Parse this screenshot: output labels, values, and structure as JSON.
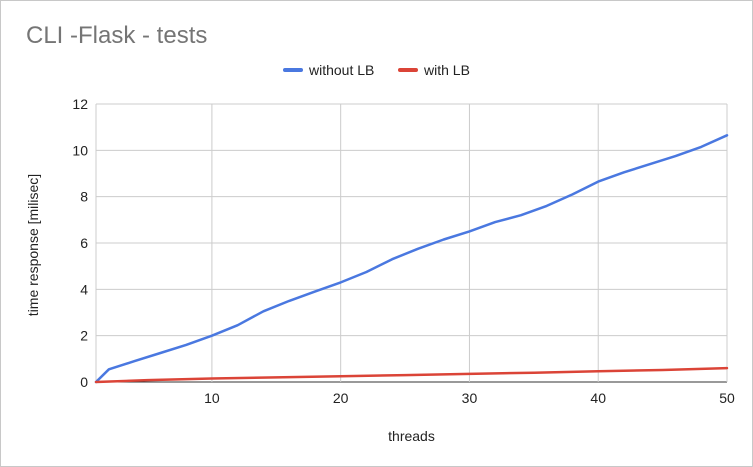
{
  "chart_data": {
    "type": "line",
    "title": "CLI -Flask - tests",
    "xlabel": "threads",
    "ylabel": "time response [milisec]",
    "xlim": [
      1,
      50
    ],
    "ylim": [
      0,
      12
    ],
    "x_ticks": [
      10,
      20,
      30,
      40,
      50
    ],
    "y_ticks": [
      0,
      2,
      4,
      6,
      8,
      10,
      12
    ],
    "grid": true,
    "legend_position": "top",
    "series": [
      {
        "name": "without LB",
        "color": "#4a78e0",
        "points": [
          [
            1,
            0.0
          ],
          [
            2,
            0.55
          ],
          [
            4,
            0.9
          ],
          [
            6,
            1.25
          ],
          [
            8,
            1.6
          ],
          [
            10,
            2.0
          ],
          [
            12,
            2.45
          ],
          [
            14,
            3.05
          ],
          [
            16,
            3.5
          ],
          [
            18,
            3.9
          ],
          [
            20,
            4.3
          ],
          [
            22,
            4.75
          ],
          [
            24,
            5.3
          ],
          [
            26,
            5.75
          ],
          [
            28,
            6.15
          ],
          [
            30,
            6.5
          ],
          [
            32,
            6.9
          ],
          [
            34,
            7.2
          ],
          [
            36,
            7.6
          ],
          [
            38,
            8.1
          ],
          [
            40,
            8.65
          ],
          [
            42,
            9.05
          ],
          [
            44,
            9.4
          ],
          [
            46,
            9.75
          ],
          [
            48,
            10.15
          ],
          [
            50,
            10.65
          ]
        ]
      },
      {
        "name": "with LB",
        "color": "#db4437",
        "points": [
          [
            1,
            0.0
          ],
          [
            5,
            0.08
          ],
          [
            10,
            0.15
          ],
          [
            15,
            0.2
          ],
          [
            20,
            0.25
          ],
          [
            25,
            0.3
          ],
          [
            30,
            0.35
          ],
          [
            35,
            0.4
          ],
          [
            40,
            0.46
          ],
          [
            45,
            0.52
          ],
          [
            50,
            0.6
          ]
        ]
      }
    ]
  }
}
